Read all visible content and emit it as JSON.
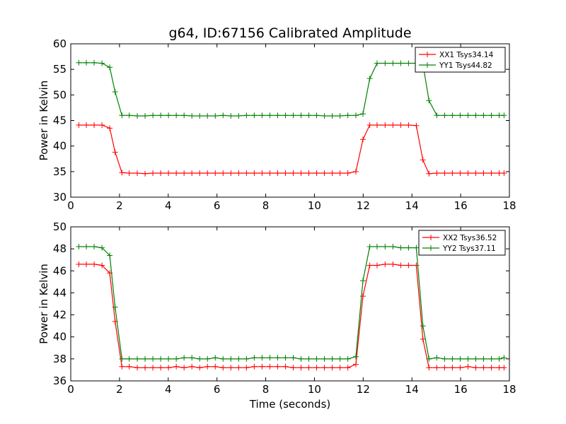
{
  "figure_title": "g64, ID:67156 Calibrated Amplitude",
  "chart_data": [
    {
      "type": "line",
      "title": "g64, ID:67156 Calibrated Amplitude",
      "xlabel": "",
      "ylabel": "Power in Kelvin",
      "xlim": [
        0,
        18
      ],
      "ylim": [
        30,
        60
      ],
      "xticks": [
        "0",
        "2",
        "4",
        "6",
        "8",
        "10",
        "12",
        "14",
        "16",
        "18"
      ],
      "yticks": [
        "30",
        "35",
        "40",
        "45",
        "50",
        "55",
        "60"
      ],
      "legend_position": "top-right",
      "grid": false,
      "x": [
        0.33,
        0.64,
        0.96,
        1.28,
        1.6,
        1.82,
        2.1,
        2.4,
        2.73,
        3.05,
        3.37,
        3.69,
        4.01,
        4.33,
        4.65,
        4.97,
        5.29,
        5.61,
        5.93,
        6.25,
        6.57,
        6.89,
        7.21,
        7.53,
        7.85,
        8.17,
        8.49,
        8.81,
        9.13,
        9.45,
        9.77,
        10.09,
        10.41,
        10.73,
        11.05,
        11.37,
        11.7,
        11.99,
        12.27,
        12.57,
        12.9,
        13.22,
        13.54,
        13.86,
        14.18,
        14.45,
        14.7,
        15.02,
        15.34,
        15.66,
        15.98,
        16.3,
        16.62,
        16.94,
        17.26,
        17.58,
        17.78
      ],
      "series": [
        {
          "name": "XX1 Tsys34.14",
          "color": "#ff0000",
          "values": [
            44.1,
            44.1,
            44.1,
            44.1,
            43.5,
            38.8,
            34.8,
            34.7,
            34.7,
            34.6,
            34.7,
            34.7,
            34.7,
            34.7,
            34.7,
            34.7,
            34.7,
            34.7,
            34.7,
            34.7,
            34.7,
            34.7,
            34.7,
            34.7,
            34.7,
            34.7,
            34.7,
            34.7,
            34.7,
            34.7,
            34.7,
            34.7,
            34.7,
            34.7,
            34.7,
            34.7,
            35.0,
            41.3,
            44.1,
            44.1,
            44.1,
            44.1,
            44.1,
            44.1,
            44.0,
            37.3,
            34.6,
            34.7,
            34.7,
            34.7,
            34.7,
            34.7,
            34.7,
            34.7,
            34.7,
            34.7,
            34.7
          ]
        },
        {
          "name": "YY1 Tsys44.82",
          "color": "#008000",
          "values": [
            56.3,
            56.3,
            56.3,
            56.2,
            55.4,
            50.6,
            46.0,
            46.0,
            45.9,
            45.9,
            46.0,
            46.0,
            46.0,
            46.0,
            46.0,
            45.9,
            45.9,
            45.9,
            45.9,
            46.0,
            45.9,
            45.9,
            46.0,
            46.0,
            46.0,
            46.0,
            46.0,
            46.0,
            46.0,
            46.0,
            46.0,
            46.0,
            45.9,
            45.9,
            45.9,
            46.0,
            46.0,
            46.3,
            53.2,
            56.2,
            56.2,
            56.2,
            56.2,
            56.2,
            56.2,
            56.1,
            48.9,
            46.0,
            46.0,
            46.0,
            46.0,
            46.0,
            46.0,
            46.0,
            46.0,
            46.0,
            46.0
          ]
        }
      ]
    },
    {
      "type": "line",
      "title": "",
      "xlabel": "Time (seconds)",
      "ylabel": "Power in Kelvin",
      "xlim": [
        0,
        18
      ],
      "ylim": [
        36,
        50
      ],
      "xticks": [
        "0",
        "2",
        "4",
        "6",
        "8",
        "10",
        "12",
        "14",
        "16",
        "18"
      ],
      "yticks": [
        "36",
        "38",
        "40",
        "42",
        "44",
        "46",
        "48",
        "50"
      ],
      "legend_position": "top-right",
      "grid": false,
      "x": [
        0.33,
        0.64,
        0.96,
        1.28,
        1.6,
        1.82,
        2.1,
        2.4,
        2.73,
        3.05,
        3.37,
        3.69,
        4.01,
        4.33,
        4.65,
        4.97,
        5.29,
        5.61,
        5.93,
        6.25,
        6.57,
        6.89,
        7.21,
        7.53,
        7.85,
        8.17,
        8.49,
        8.81,
        9.13,
        9.45,
        9.77,
        10.09,
        10.41,
        10.73,
        11.05,
        11.37,
        11.7,
        11.99,
        12.27,
        12.57,
        12.9,
        13.22,
        13.54,
        13.86,
        14.18,
        14.45,
        14.7,
        15.02,
        15.34,
        15.66,
        15.98,
        16.3,
        16.62,
        16.94,
        17.26,
        17.58,
        17.78
      ],
      "series": [
        {
          "name": "XX2 Tsys36.52",
          "color": "#ff0000",
          "values": [
            46.6,
            46.6,
            46.6,
            46.5,
            45.8,
            41.4,
            37.3,
            37.3,
            37.2,
            37.2,
            37.2,
            37.2,
            37.2,
            37.3,
            37.2,
            37.3,
            37.2,
            37.3,
            37.3,
            37.2,
            37.2,
            37.2,
            37.2,
            37.3,
            37.3,
            37.3,
            37.3,
            37.3,
            37.2,
            37.2,
            37.2,
            37.2,
            37.2,
            37.2,
            37.2,
            37.2,
            37.5,
            43.7,
            46.5,
            46.5,
            46.6,
            46.6,
            46.5,
            46.5,
            46.5,
            39.8,
            37.2,
            37.2,
            37.2,
            37.2,
            37.2,
            37.3,
            37.2,
            37.2,
            37.2,
            37.2,
            37.2
          ]
        },
        {
          "name": "YY2 Tsys37.11",
          "color": "#008000",
          "values": [
            48.2,
            48.2,
            48.2,
            48.1,
            47.4,
            42.7,
            38.0,
            38.0,
            38.0,
            38.0,
            38.0,
            38.0,
            38.0,
            38.0,
            38.1,
            38.1,
            38.0,
            38.0,
            38.1,
            38.0,
            38.0,
            38.0,
            38.0,
            38.1,
            38.1,
            38.1,
            38.1,
            38.1,
            38.1,
            38.0,
            38.0,
            38.0,
            38.0,
            38.0,
            38.0,
            38.0,
            38.2,
            45.1,
            48.2,
            48.2,
            48.2,
            48.2,
            48.1,
            48.1,
            48.1,
            41.0,
            38.0,
            38.1,
            38.0,
            38.0,
            38.0,
            38.0,
            38.0,
            38.0,
            38.0,
            38.0,
            38.1
          ]
        }
      ]
    }
  ]
}
